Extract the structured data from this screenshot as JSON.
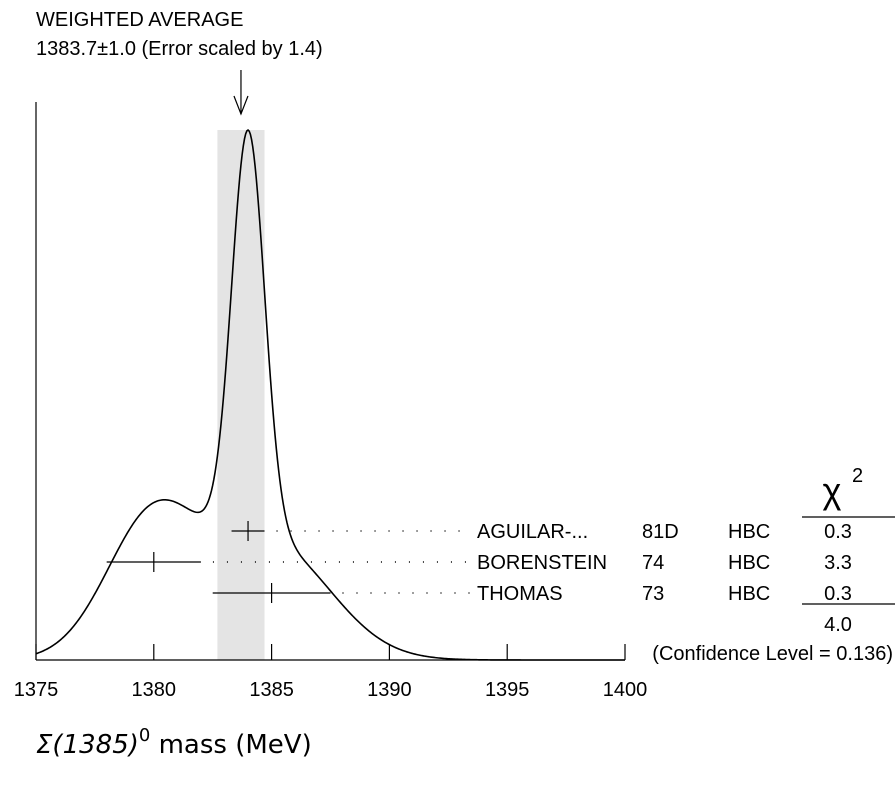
{
  "chart_data": {
    "type": "scatter",
    "title": "WEIGHTED AVERAGE",
    "subtitle": "1383.7±1.0 (Error scaled by 1.4)",
    "average": {
      "value": 1383.7,
      "error": 1.0
    },
    "xlabel_symbol": "Σ(1385)",
    "xlabel_sup": "0",
    "xlabel_rest": " mass (MeV)",
    "xlim": [
      1375,
      1400
    ],
    "xticks": [
      1375,
      1380,
      1385,
      1390,
      1395,
      1400
    ],
    "chi2_header": "χ",
    "chi2_header_sup": "2",
    "measurements": [
      {
        "author": "AGUILAR-...",
        "year": "81D",
        "technique": "HBC",
        "value": 1384.0,
        "err_minus": 0.7,
        "err_plus": 0.7,
        "chi2": "0.3"
      },
      {
        "author": "BORENSTEIN",
        "year": "74",
        "technique": "HBC",
        "value": 1380.0,
        "err_minus": 2.0,
        "err_plus": 2.0,
        "chi2": "3.3"
      },
      {
        "author": "THOMAS",
        "year": "73",
        "technique": "HBC",
        "value": 1385.0,
        "err_minus": 2.5,
        "err_plus": 2.5,
        "chi2": "0.3"
      }
    ],
    "chi2_total": "4.0",
    "confidence_level": "(Confidence Level = 0.136)"
  }
}
